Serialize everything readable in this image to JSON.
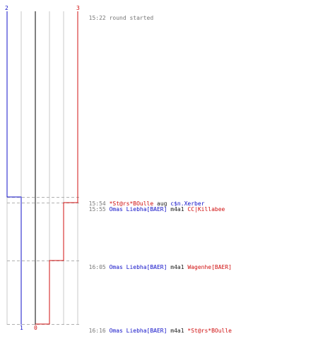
{
  "colors": {
    "blue": "#1010c8",
    "red": "#d01010",
    "grid": "#c8c8c8",
    "center": "#808080",
    "dash": "#b0b0b0",
    "time": "#777777",
    "verb": "#202020"
  },
  "scores": {
    "blue_start": "2",
    "red_start": "3",
    "blue_end": "1",
    "red_end": "0"
  },
  "start": {
    "time": "15:22",
    "text": "round started"
  },
  "events": [
    {
      "time": "15:54",
      "killer": "*St@rs*BOulle",
      "killer_team": "red",
      "verb": "aug",
      "victim": "c$n.Xerber",
      "victim_team": "blue"
    },
    {
      "time": "15:55",
      "killer": "Omas Liebha[BAER]",
      "killer_team": "blue",
      "verb": "m4a1",
      "victim": "CC|Killabee",
      "victim_team": "red"
    },
    {
      "time": "16:05",
      "killer": "Omas Liebha[BAER]",
      "killer_team": "blue",
      "verb": "m4a1",
      "victim": "Wagenhe[BAER]",
      "victim_team": "red"
    },
    {
      "time": "16:16",
      "killer": "Omas Liebha[BAER]",
      "killer_team": "blue",
      "verb": "m4a1",
      "victim": "*St@rs*BOulle",
      "victim_team": "red"
    }
  ]
}
